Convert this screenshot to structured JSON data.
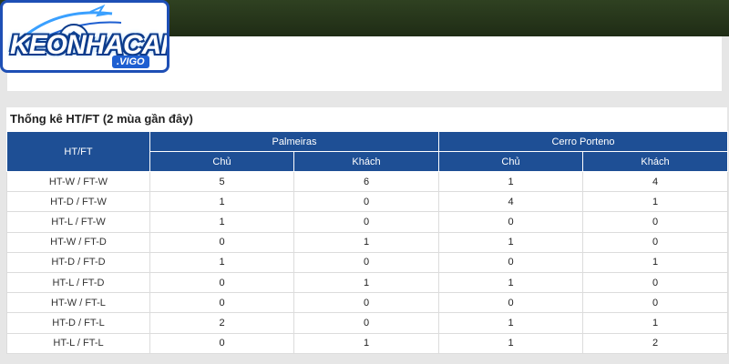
{
  "logo": {
    "main_text": "KEONHACAI",
    "sub_text": ".VIGO",
    "colors": {
      "blue": "#1e4fb5",
      "light_blue": "#3aa0ff"
    }
  },
  "section": {
    "title": "Thống kê HT/FT (2 mùa gần đây)"
  },
  "table": {
    "first_header": "HT/FT",
    "teams": [
      {
        "name": "Palmeiras",
        "cols": [
          "Chủ",
          "Khách"
        ]
      },
      {
        "name": "Cerro Porteno",
        "cols": [
          "Chủ",
          "Khách"
        ]
      }
    ],
    "rows": [
      {
        "label": "HT-W / FT-W",
        "values": [
          "5",
          "6",
          "1",
          "4"
        ]
      },
      {
        "label": "HT-D / FT-W",
        "values": [
          "1",
          "0",
          "4",
          "1"
        ]
      },
      {
        "label": "HT-L / FT-W",
        "values": [
          "1",
          "0",
          "0",
          "0"
        ]
      },
      {
        "label": "HT-W / FT-D",
        "values": [
          "0",
          "1",
          "1",
          "0"
        ]
      },
      {
        "label": "HT-D / FT-D",
        "values": [
          "1",
          "0",
          "0",
          "1"
        ]
      },
      {
        "label": "HT-L / FT-D",
        "values": [
          "0",
          "1",
          "1",
          "0"
        ]
      },
      {
        "label": "HT-W / FT-L",
        "values": [
          "0",
          "0",
          "0",
          "0"
        ]
      },
      {
        "label": "HT-D / FT-L",
        "values": [
          "2",
          "0",
          "1",
          "1"
        ]
      },
      {
        "label": "HT-L / FT-L",
        "values": [
          "0",
          "1",
          "1",
          "2"
        ]
      }
    ],
    "header_color": "#1e4f95"
  }
}
